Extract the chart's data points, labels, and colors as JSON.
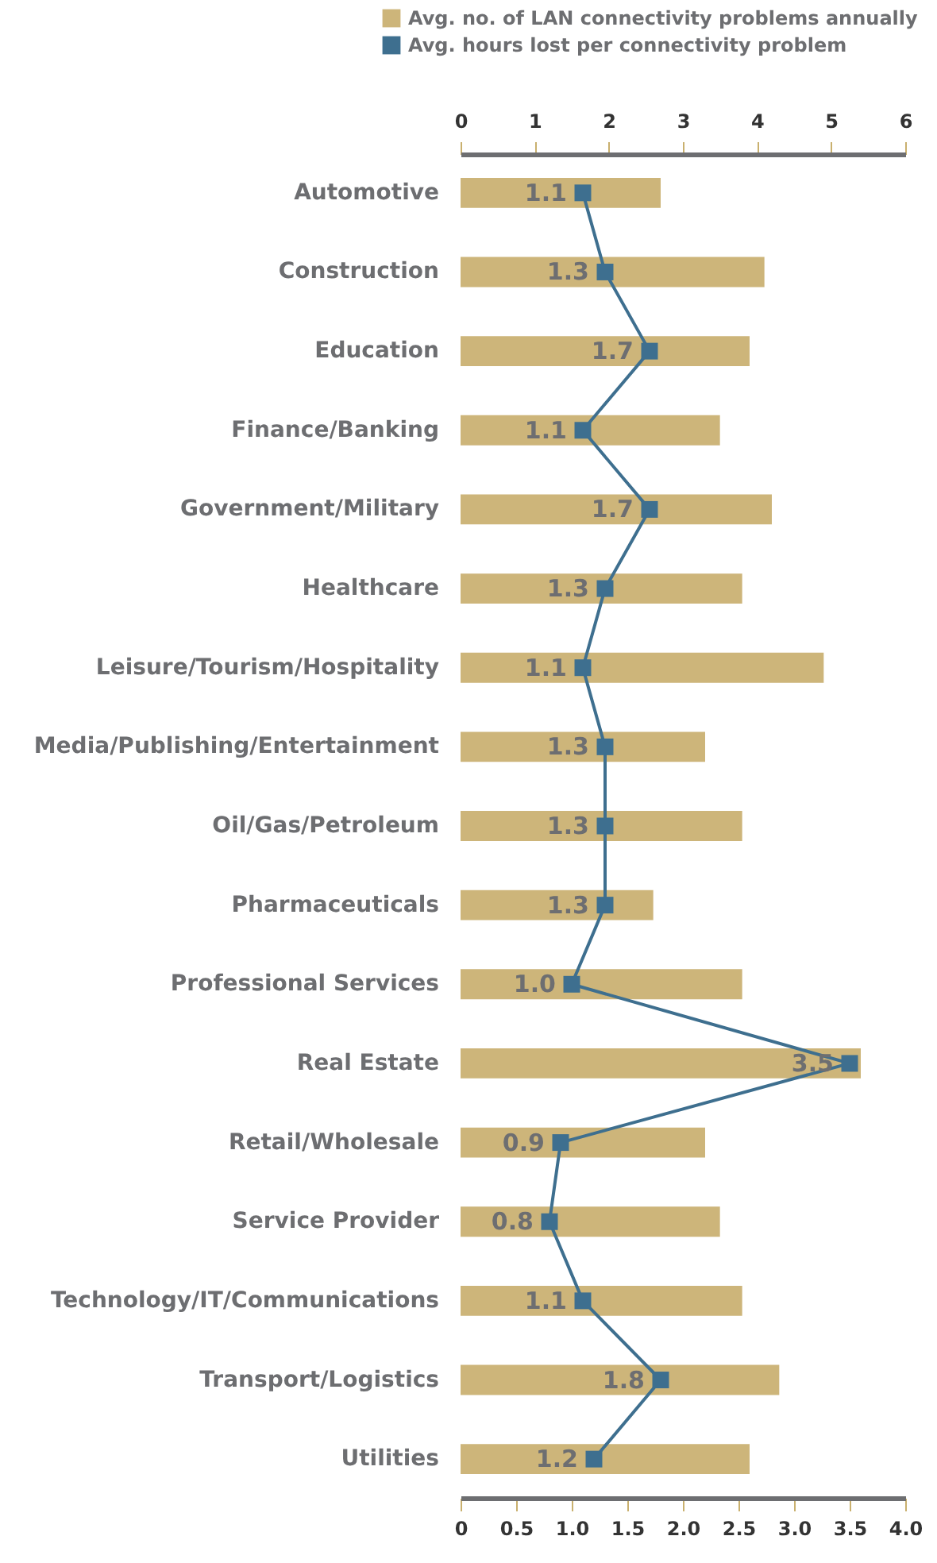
{
  "chart_data": {
    "type": "bar",
    "orientation": "horizontal",
    "legend": "top",
    "marker": "square",
    "categories": [
      "Automotive",
      "Construction",
      "Education",
      "Finance/Banking",
      "Government/Military",
      "Healthcare",
      "Leisure/Tourism/Hospitality",
      "Media/Publishing/Entertainment",
      "Oil/Gas/Petroleum",
      "Pharmaceuticals",
      "Professional Services",
      "Real Estate",
      "Retail/Wholesale",
      "Service Provider",
      "Technology/IT/Communications",
      "Transport/Logistics",
      "Utilities"
    ],
    "series": [
      {
        "name": "Avg. no. of LAN connectivity problems annually",
        "type": "bar",
        "axis": "x2",
        "color": "#cdb57a",
        "values": [
          2.7,
          4.1,
          3.9,
          3.5,
          4.2,
          3.8,
          4.9,
          3.3,
          3.8,
          2.6,
          3.8,
          5.4,
          3.3,
          3.5,
          3.8,
          4.3,
          3.9
        ]
      },
      {
        "name": "Avg. hours lost per connectivity problem",
        "type": "line",
        "color": "#3e6f8f",
        "values": [
          1.1,
          1.3,
          1.7,
          1.1,
          1.7,
          1.3,
          1.1,
          1.3,
          1.3,
          1.3,
          1.0,
          3.5,
          0.9,
          0.8,
          1.1,
          1.8,
          1.2
        ],
        "value_labels": [
          "1.1",
          "1.3",
          "1.7",
          "1.1",
          "1.7",
          "1.3",
          "1.1",
          "1.3",
          "1.3",
          "1.3",
          "1.0",
          "3.5",
          "0.9",
          "0.8",
          "1.1",
          "1.8",
          "1.2"
        ]
      }
    ],
    "xlim": [
      0,
      4
    ],
    "xticks": [
      0,
      0.5,
      {
        "value": 1,
        "label": "1.0"
      },
      1.5,
      {
        "value": 2,
        "label": "2.0"
      },
      2.5,
      {
        "value": 3,
        "label": "3.0"
      },
      3.5,
      {
        "value": 4,
        "label": "4.0"
      }
    ],
    "x2lim": [
      0,
      6
    ],
    "x2ticks": [
      0,
      1,
      2,
      3,
      4,
      5,
      6
    ]
  }
}
